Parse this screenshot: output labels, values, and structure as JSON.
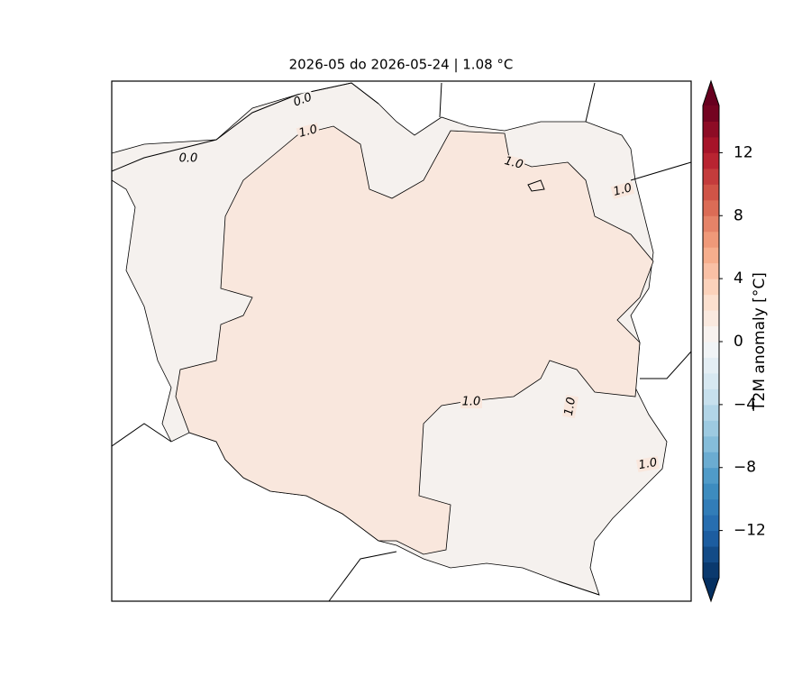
{
  "title": "2026-05 do 2026-05-24 | 1.08 °C",
  "map": {
    "contour_labels": [
      "0.0",
      "0.0",
      "1.0",
      "1.0",
      "1.0",
      "1.0",
      "1.0",
      "1.0"
    ],
    "fill_colors": [
      "#f5f1ee",
      "#f9e7dd"
    ]
  },
  "colorbar": {
    "label": "T2M anomaly [°C]",
    "clim": [
      -15,
      15
    ],
    "n_levels": 30,
    "colormap": [
      "#053061",
      "#2166ac",
      "#4393c3",
      "#92c5de",
      "#d1e5f0",
      "#f7f7f7",
      "#fddbc7",
      "#f4a582",
      "#d6604d",
      "#b2182b",
      "#67001f"
    ],
    "ticks": [
      12,
      8,
      4,
      0,
      {
        "value": -4,
        "label": "−4"
      },
      {
        "value": -8,
        "label": "−8"
      },
      {
        "value": -12,
        "label": "−12"
      }
    ]
  }
}
